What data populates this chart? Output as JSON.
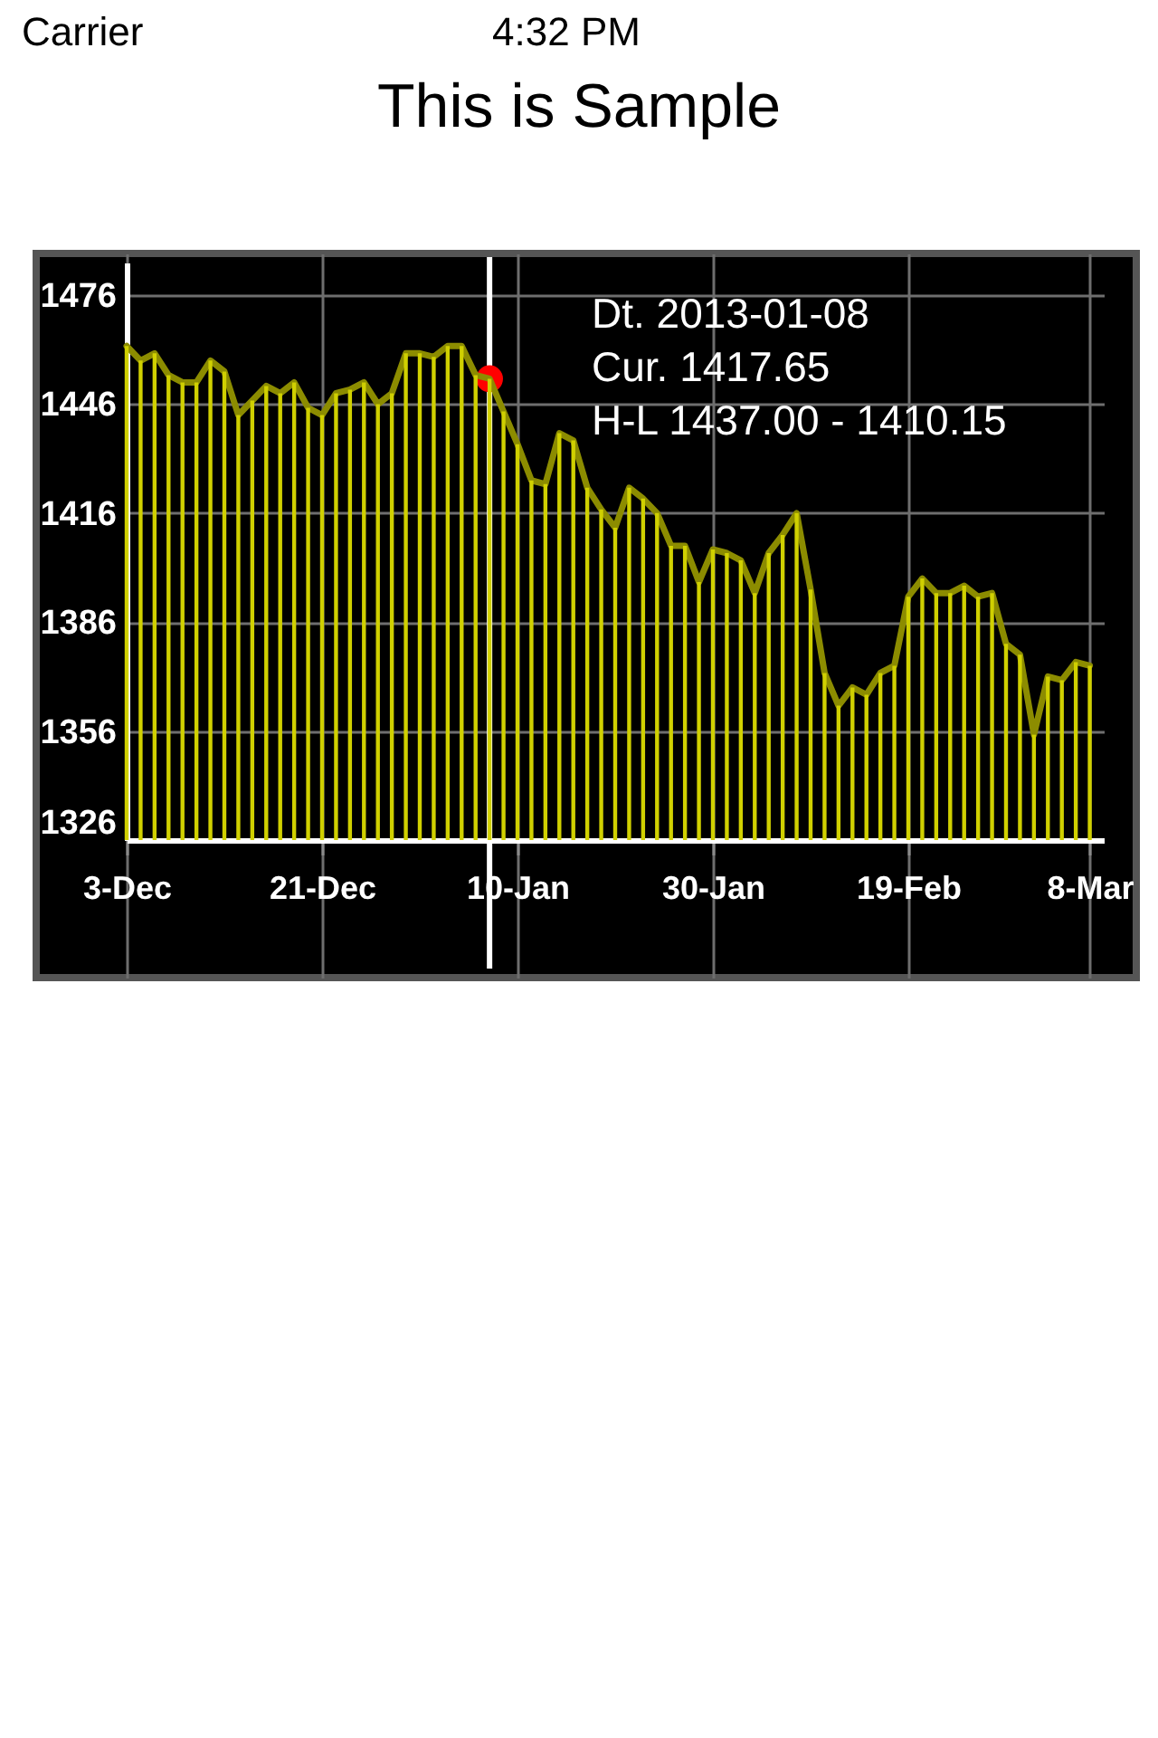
{
  "chart_data": {
    "type": "line",
    "title": "This is Sample",
    "annotations": [
      "Carrier",
      "4:32 PM",
      "Dt. 2013-01-08",
      "Cur. 1417.65",
      "H-L 1437.00 - 1410.15"
    ],
    "categories": [
      "3-Dec",
      null,
      null,
      null,
      null,
      null,
      null,
      null,
      null,
      null,
      null,
      null,
      null,
      null,
      "21-Dec",
      null,
      null,
      null,
      null,
      null,
      null,
      null,
      null,
      null,
      null,
      null,
      null,
      null,
      "10-Jan",
      null,
      null,
      null,
      null,
      null,
      null,
      null,
      null,
      null,
      null,
      null,
      null,
      null,
      "30-Jan",
      null,
      null,
      null,
      null,
      null,
      null,
      null,
      null,
      null,
      null,
      null,
      null,
      null,
      "19-Feb",
      null,
      null,
      null,
      null,
      null,
      null,
      null,
      null,
      null,
      null,
      null,
      null,
      "8-Mar"
    ],
    "series": [
      {
        "type": "bar",
        "color": "#d0d000",
        "values": [
          1462,
          1458,
          1460,
          1454,
          1452,
          1452,
          1458,
          1455,
          1443,
          1447,
          1451,
          1449,
          1452,
          1445,
          1443,
          1449,
          1450,
          1452,
          1446,
          1449,
          1460,
          1460,
          1459,
          1462,
          1462,
          1454,
          1453,
          1444,
          1435,
          1425,
          1424,
          1438,
          1436,
          1423,
          1417,
          1412,
          1423,
          1420,
          1416,
          1407,
          1407,
          1397,
          1406,
          1405,
          1403,
          1394,
          1405,
          1410,
          1416,
          1395,
          1372,
          1363,
          1368,
          1366,
          1372,
          1374,
          1393,
          1398,
          1394,
          1394,
          1396,
          1393,
          1394,
          1380,
          1377,
          1355,
          1371,
          1370,
          1375,
          1374
        ]
      },
      {
        "color": "#8c8c00",
        "values": [
          1462,
          1458,
          1460,
          1454,
          1452,
          1452,
          1458,
          1455,
          1443,
          1447,
          1451,
          1449,
          1452,
          1445,
          1443,
          1449,
          1450,
          1452,
          1446,
          1449,
          1460,
          1460,
          1459,
          1462,
          1462,
          1454,
          1453,
          1444,
          1435,
          1425,
          1424,
          1438,
          1436,
          1423,
          1417,
          1412,
          1423,
          1420,
          1416,
          1407,
          1407,
          1397,
          1406,
          1405,
          1403,
          1394,
          1405,
          1410,
          1416,
          1395,
          1372,
          1363,
          1368,
          1366,
          1372,
          1374,
          1393,
          1398,
          1394,
          1394,
          1396,
          1393,
          1394,
          1380,
          1377,
          1355,
          1371,
          1370,
          1375,
          1374
        ]
      },
      {
        "type": "scatter",
        "color": "#ff0000",
        "marker": "circle",
        "values": [
          null,
          null,
          null,
          null,
          null,
          null,
          null,
          null,
          null,
          null,
          null,
          null,
          null,
          null,
          null,
          null,
          null,
          null,
          null,
          null,
          null,
          null,
          null,
          null,
          null,
          null,
          1453,
          null,
          null,
          null,
          null,
          null,
          null,
          null,
          null,
          null,
          null,
          null,
          null,
          null,
          null,
          null,
          null,
          null,
          null,
          null,
          null,
          null,
          null,
          null,
          null,
          null,
          null,
          null,
          null,
          null,
          null,
          null,
          null,
          null,
          null,
          null,
          null,
          null,
          null,
          null,
          null,
          null,
          null,
          null
        ]
      }
    ],
    "ylim": [
      1326,
      1485
    ],
    "yticks": [
      1326,
      1356,
      1386,
      1416,
      1446,
      1476
    ],
    "grid": true
  }
}
